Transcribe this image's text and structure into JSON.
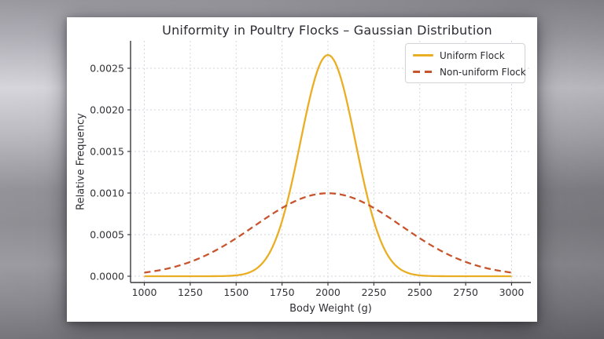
{
  "chart_data": {
    "type": "line",
    "title": "Uniformity in Poultry Flocks – Gaussian Distribution",
    "xlabel": "Body Weight (g)",
    "ylabel": "Relative Frequency",
    "legend": {
      "position": "upper right",
      "entries": [
        "Uniform Flock",
        "Non-uniform Flock"
      ]
    },
    "x_range": [
      1000,
      3000
    ],
    "xlim": [
      925,
      3105
    ],
    "ylim": [
      -7.55e-05,
      0.00283
    ],
    "x_ticks": [
      1000,
      1250,
      1500,
      1750,
      2000,
      2250,
      2500,
      2750,
      3000
    ],
    "x_tick_labels": [
      "1000",
      "1250",
      "1500",
      "1750",
      "2000",
      "2250",
      "2500",
      "2750",
      "3000"
    ],
    "y_ticks": [
      0.0,
      0.0005,
      0.001,
      0.0015,
      0.002,
      0.0025
    ],
    "y_tick_labels": [
      "0.0000",
      "0.0005",
      "0.0010",
      "0.0015",
      "0.0020",
      "0.0025"
    ],
    "grid": true,
    "grid_color": "#d6d6dc",
    "axis_color": "#3a3a3e",
    "tick_text_color": "#333337",
    "series": [
      {
        "name": "Uniform Flock",
        "distribution": "gaussian",
        "mean": 2000,
        "std": 150,
        "peak_value": 0.00266,
        "color": "#EAAE24",
        "line_style": "solid",
        "sample_x": [
          1000,
          1100,
          1200,
          1300,
          1400,
          1500,
          1600,
          1700,
          1800,
          1900,
          2000,
          2100,
          2200,
          2300,
          2400,
          2500,
          2600,
          2700,
          2800,
          2900,
          3000
        ],
        "sample_y": [
          0,
          0,
          0,
          0,
          9e-07,
          1.03e-05,
          7.6e-05,
          0.00036,
          0.0010934,
          0.0021296,
          0.0026596,
          0.0021296,
          0.0010934,
          0.00036,
          7.6e-05,
          1.03e-05,
          9e-07,
          0,
          0,
          0,
          0
        ]
      },
      {
        "name": "Non-uniform Flock",
        "distribution": "gaussian",
        "mean": 2000,
        "std": 400,
        "peak_value": 0.001,
        "color": "#C8542D",
        "line_style": "dashed",
        "sample_x": [
          1000,
          1100,
          1200,
          1300,
          1400,
          1500,
          1600,
          1700,
          1800,
          1900,
          2000,
          2100,
          2200,
          2300,
          2400,
          2500,
          2600,
          2700,
          2800,
          2900,
          3000
        ],
        "sample_y": [
          4.38e-05,
          7.94e-05,
          0.000135,
          0.0002157,
          0.0003238,
          0.0004566,
          0.0006049,
          0.0007529,
          0.0008802,
          0.0009667,
          0.0009974,
          0.0009667,
          0.0008802,
          0.0007529,
          0.0006049,
          0.0004566,
          0.0003238,
          0.0002157,
          0.000135,
          7.94e-05,
          4.38e-05
        ]
      }
    ]
  }
}
